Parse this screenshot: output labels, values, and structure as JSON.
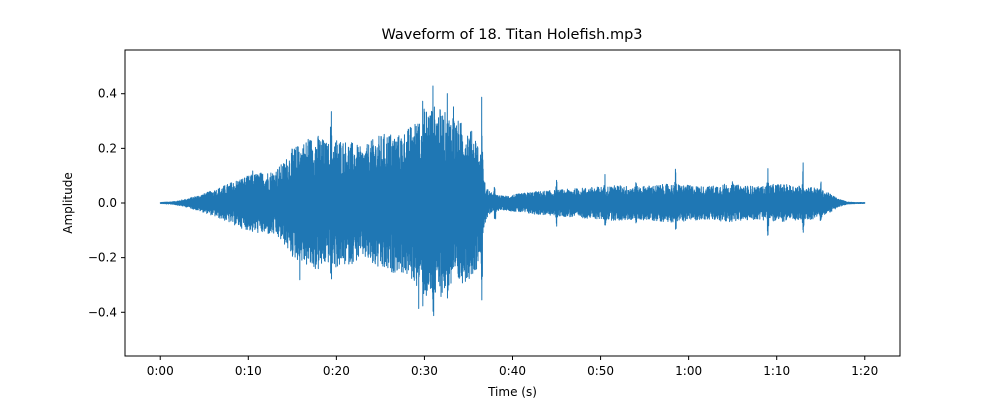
{
  "chart_data": {
    "type": "line",
    "title": "Waveform of 18. Titan Holefish.mp3",
    "xlabel": "Time (s)",
    "ylabel": "Amplitude",
    "xlim": [
      -4,
      84
    ],
    "ylim": [
      -0.56,
      0.56
    ],
    "x_ticks": [
      0,
      10,
      20,
      30,
      40,
      50,
      60,
      70,
      80
    ],
    "x_tick_labels": [
      "0:00",
      "0:10",
      "0:20",
      "0:30",
      "0:40",
      "0:50",
      "1:00",
      "1:10",
      "1:20"
    ],
    "y_ticks": [
      -0.4,
      -0.2,
      0.0,
      0.2,
      0.4
    ],
    "y_tick_labels": [
      "−0.4",
      "−0.2",
      "0.0",
      "0.2",
      "0.4"
    ],
    "grid": false,
    "series": [
      {
        "color": "#1f77b4",
        "duration_s": 80,
        "envelope_t": [
          0,
          1.5,
          3,
          5,
          7,
          9,
          11,
          13,
          14,
          15,
          16,
          17,
          18,
          19,
          20,
          21,
          22,
          23,
          24,
          25,
          26,
          27,
          28,
          29,
          30,
          31,
          32,
          33,
          34,
          35,
          36,
          36.5,
          37,
          37.5,
          38,
          39,
          40,
          42,
          44,
          46,
          48,
          50,
          52,
          54,
          56,
          58,
          60,
          62,
          64,
          66,
          68,
          70,
          72,
          74,
          75,
          76,
          77,
          78,
          79,
          80
        ],
        "envelope_max": [
          0.002,
          0.005,
          0.015,
          0.035,
          0.06,
          0.09,
          0.11,
          0.12,
          0.15,
          0.2,
          0.22,
          0.24,
          0.25,
          0.22,
          0.24,
          0.23,
          0.22,
          0.2,
          0.23,
          0.25,
          0.26,
          0.25,
          0.27,
          0.3,
          0.35,
          0.36,
          0.34,
          0.32,
          0.3,
          0.28,
          0.24,
          0.12,
          0.06,
          0.04,
          0.03,
          0.025,
          0.03,
          0.04,
          0.045,
          0.05,
          0.055,
          0.06,
          0.065,
          0.06,
          0.065,
          0.07,
          0.065,
          0.06,
          0.07,
          0.065,
          0.06,
          0.07,
          0.065,
          0.06,
          0.05,
          0.035,
          0.015,
          0.004,
          0.002,
          0.002
        ],
        "peaks": [
          {
            "t": 10.5,
            "v": 0.14
          },
          {
            "t": 15.8,
            "v": 0.33
          },
          {
            "t": 16.8,
            "v": 0.27
          },
          {
            "t": 19.4,
            "v": 0.4
          },
          {
            "t": 21.0,
            "v": 0.24
          },
          {
            "t": 24.2,
            "v": 0.3
          },
          {
            "t": 26.0,
            "v": 0.26
          },
          {
            "t": 29.3,
            "v": 0.48
          },
          {
            "t": 29.8,
            "v": 0.39
          },
          {
            "t": 31.0,
            "v": 0.52
          },
          {
            "t": 32.6,
            "v": 0.43
          },
          {
            "t": 33.3,
            "v": 0.5
          },
          {
            "t": 36.5,
            "v": 0.4
          },
          {
            "t": 38.0,
            "v": 0.08
          },
          {
            "t": 45.0,
            "v": 0.09
          },
          {
            "t": 50.5,
            "v": 0.11
          },
          {
            "t": 54.0,
            "v": 0.1
          },
          {
            "t": 58.5,
            "v": 0.13
          },
          {
            "t": 65.0,
            "v": 0.09
          },
          {
            "t": 69.0,
            "v": 0.14
          },
          {
            "t": 73.0,
            "v": 0.15
          },
          {
            "t": 75.0,
            "v": 0.09
          }
        ]
      }
    ]
  }
}
